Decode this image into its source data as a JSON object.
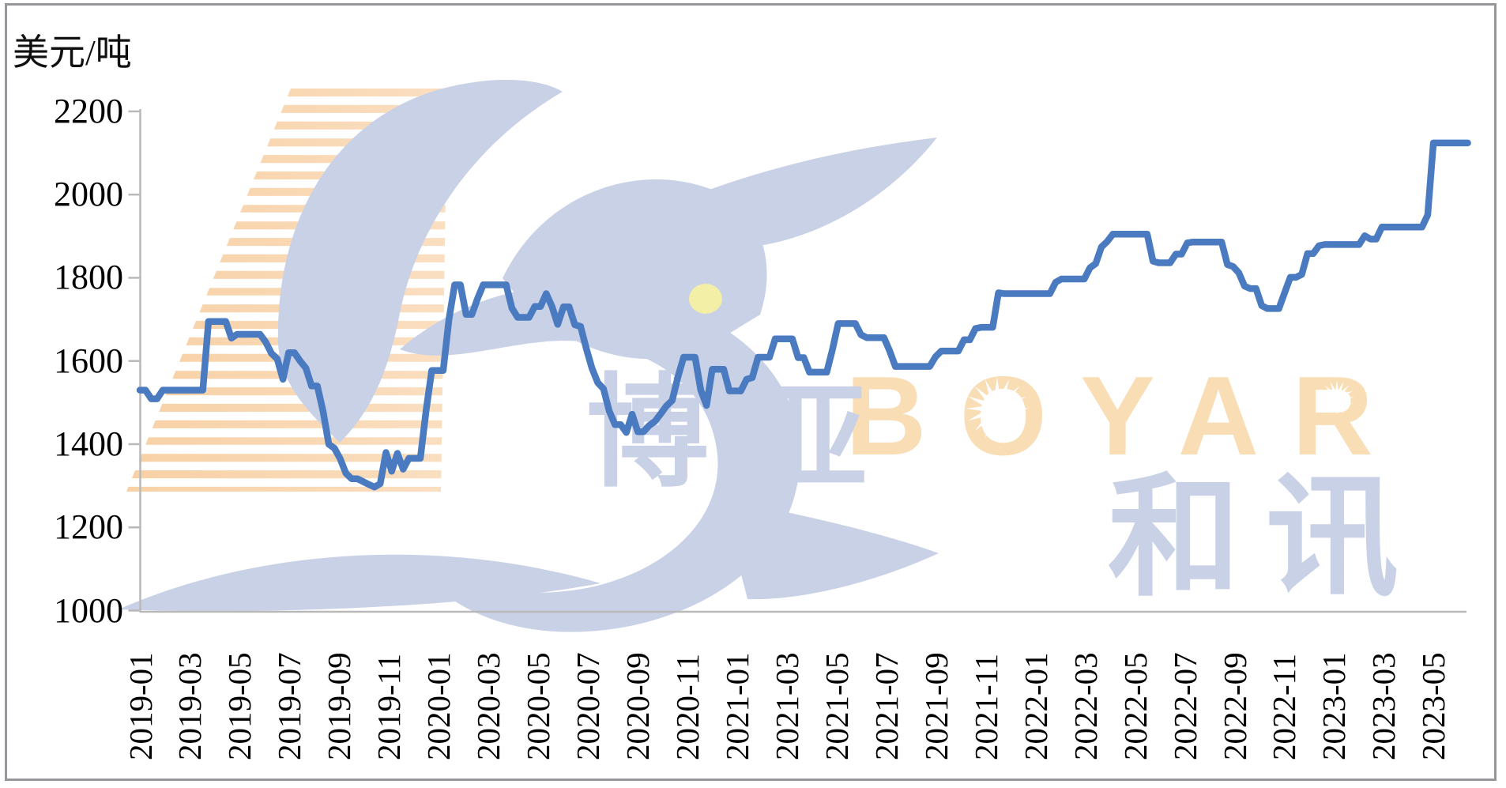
{
  "unit_label": "美元/吨",
  "watermark": {
    "brand_latin": "BOYAR",
    "cjk": [
      "博",
      "亚",
      "和",
      "讯"
    ],
    "brand_color_latin": "#f9ddb5",
    "brand_color_cjk": "#c9d1e7",
    "bird_color": "#c9d1e7",
    "eye_color": "#f3efa6",
    "stripe_color": "#f6c58f"
  },
  "chart_data": {
    "type": "line",
    "title": "",
    "xlabel": "",
    "ylabel": "美元/吨",
    "ylim": [
      1000,
      2200
    ],
    "ytick_step": 200,
    "yticks": [
      2200,
      2000,
      1800,
      1600,
      1400,
      1200,
      1000
    ],
    "grid": false,
    "legend_position": "none",
    "line_color": "#4a7abf",
    "axis_color": "#b9b9b9",
    "xtick_labels": [
      "2019-01",
      "2019-03",
      "2019-05",
      "2019-07",
      "2019-09",
      "2019-11",
      "2020-01",
      "2020-03",
      "2020-05",
      "2020-07",
      "2020-09",
      "2020-11",
      "2021-01",
      "2021-03",
      "2021-05",
      "2021-07",
      "2021-09",
      "2021-11",
      "2022-01",
      "2022-03",
      "2022-05",
      "2022-07",
      "2022-09",
      "2022-11",
      "2023-01",
      "2023-03",
      "2023-05"
    ],
    "series": [
      {
        "name": "price_usd_per_ton",
        "frequency": "weekly",
        "start_label": "2019-01",
        "end_label": "2023-06",
        "values": [
          1530,
          1530,
          1509,
          1509,
          1530,
          1530,
          1530,
          1530,
          1530,
          1530,
          1530,
          1530,
          1695,
          1695,
          1695,
          1695,
          1655,
          1664,
          1664,
          1664,
          1664,
          1664,
          1645,
          1618,
          1605,
          1556,
          1620,
          1620,
          1600,
          1583,
          1540,
          1540,
          1480,
          1400,
          1390,
          1365,
          1330,
          1317,
          1317,
          1310,
          1303,
          1297,
          1305,
          1380,
          1335,
          1378,
          1340,
          1366,
          1366,
          1366,
          1480,
          1577,
          1577,
          1577,
          1700,
          1783,
          1783,
          1712,
          1712,
          1750,
          1783,
          1783,
          1783,
          1783,
          1783,
          1727,
          1705,
          1705,
          1705,
          1731,
          1731,
          1762,
          1731,
          1688,
          1730,
          1730,
          1687,
          1683,
          1630,
          1582,
          1548,
          1533,
          1480,
          1447,
          1447,
          1428,
          1472,
          1430,
          1430,
          1445,
          1455,
          1473,
          1492,
          1505,
          1561,
          1609,
          1609,
          1609,
          1530,
          1493,
          1580,
          1580,
          1580,
          1528,
          1528,
          1528,
          1556,
          1560,
          1609,
          1609,
          1609,
          1653,
          1653,
          1653,
          1653,
          1608,
          1608,
          1573,
          1573,
          1573,
          1573,
          1627,
          1690,
          1690,
          1690,
          1690,
          1663,
          1656,
          1656,
          1656,
          1656,
          1624,
          1587,
          1587,
          1587,
          1587,
          1587,
          1587,
          1587,
          1610,
          1624,
          1624,
          1624,
          1624,
          1651,
          1651,
          1678,
          1681,
          1681,
          1681,
          1764,
          1762,
          1762,
          1762,
          1762,
          1762,
          1762,
          1762,
          1762,
          1762,
          1789,
          1797,
          1797,
          1797,
          1797,
          1797,
          1824,
          1834,
          1874,
          1887,
          1905,
          1905,
          1905,
          1905,
          1905,
          1905,
          1905,
          1840,
          1836,
          1836,
          1836,
          1857,
          1857,
          1884,
          1886,
          1886,
          1886,
          1886,
          1886,
          1886,
          1832,
          1827,
          1812,
          1780,
          1774,
          1774,
          1733,
          1726,
          1726,
          1726,
          1764,
          1801,
          1801,
          1808,
          1858,
          1858,
          1877,
          1880,
          1880,
          1880,
          1880,
          1880,
          1880,
          1880,
          1901,
          1893,
          1893,
          1922,
          1922,
          1922,
          1922,
          1922,
          1922,
          1922,
          1922,
          1951,
          2124,
          2124,
          2124,
          2124,
          2124,
          2124,
          2124
        ]
      }
    ]
  }
}
